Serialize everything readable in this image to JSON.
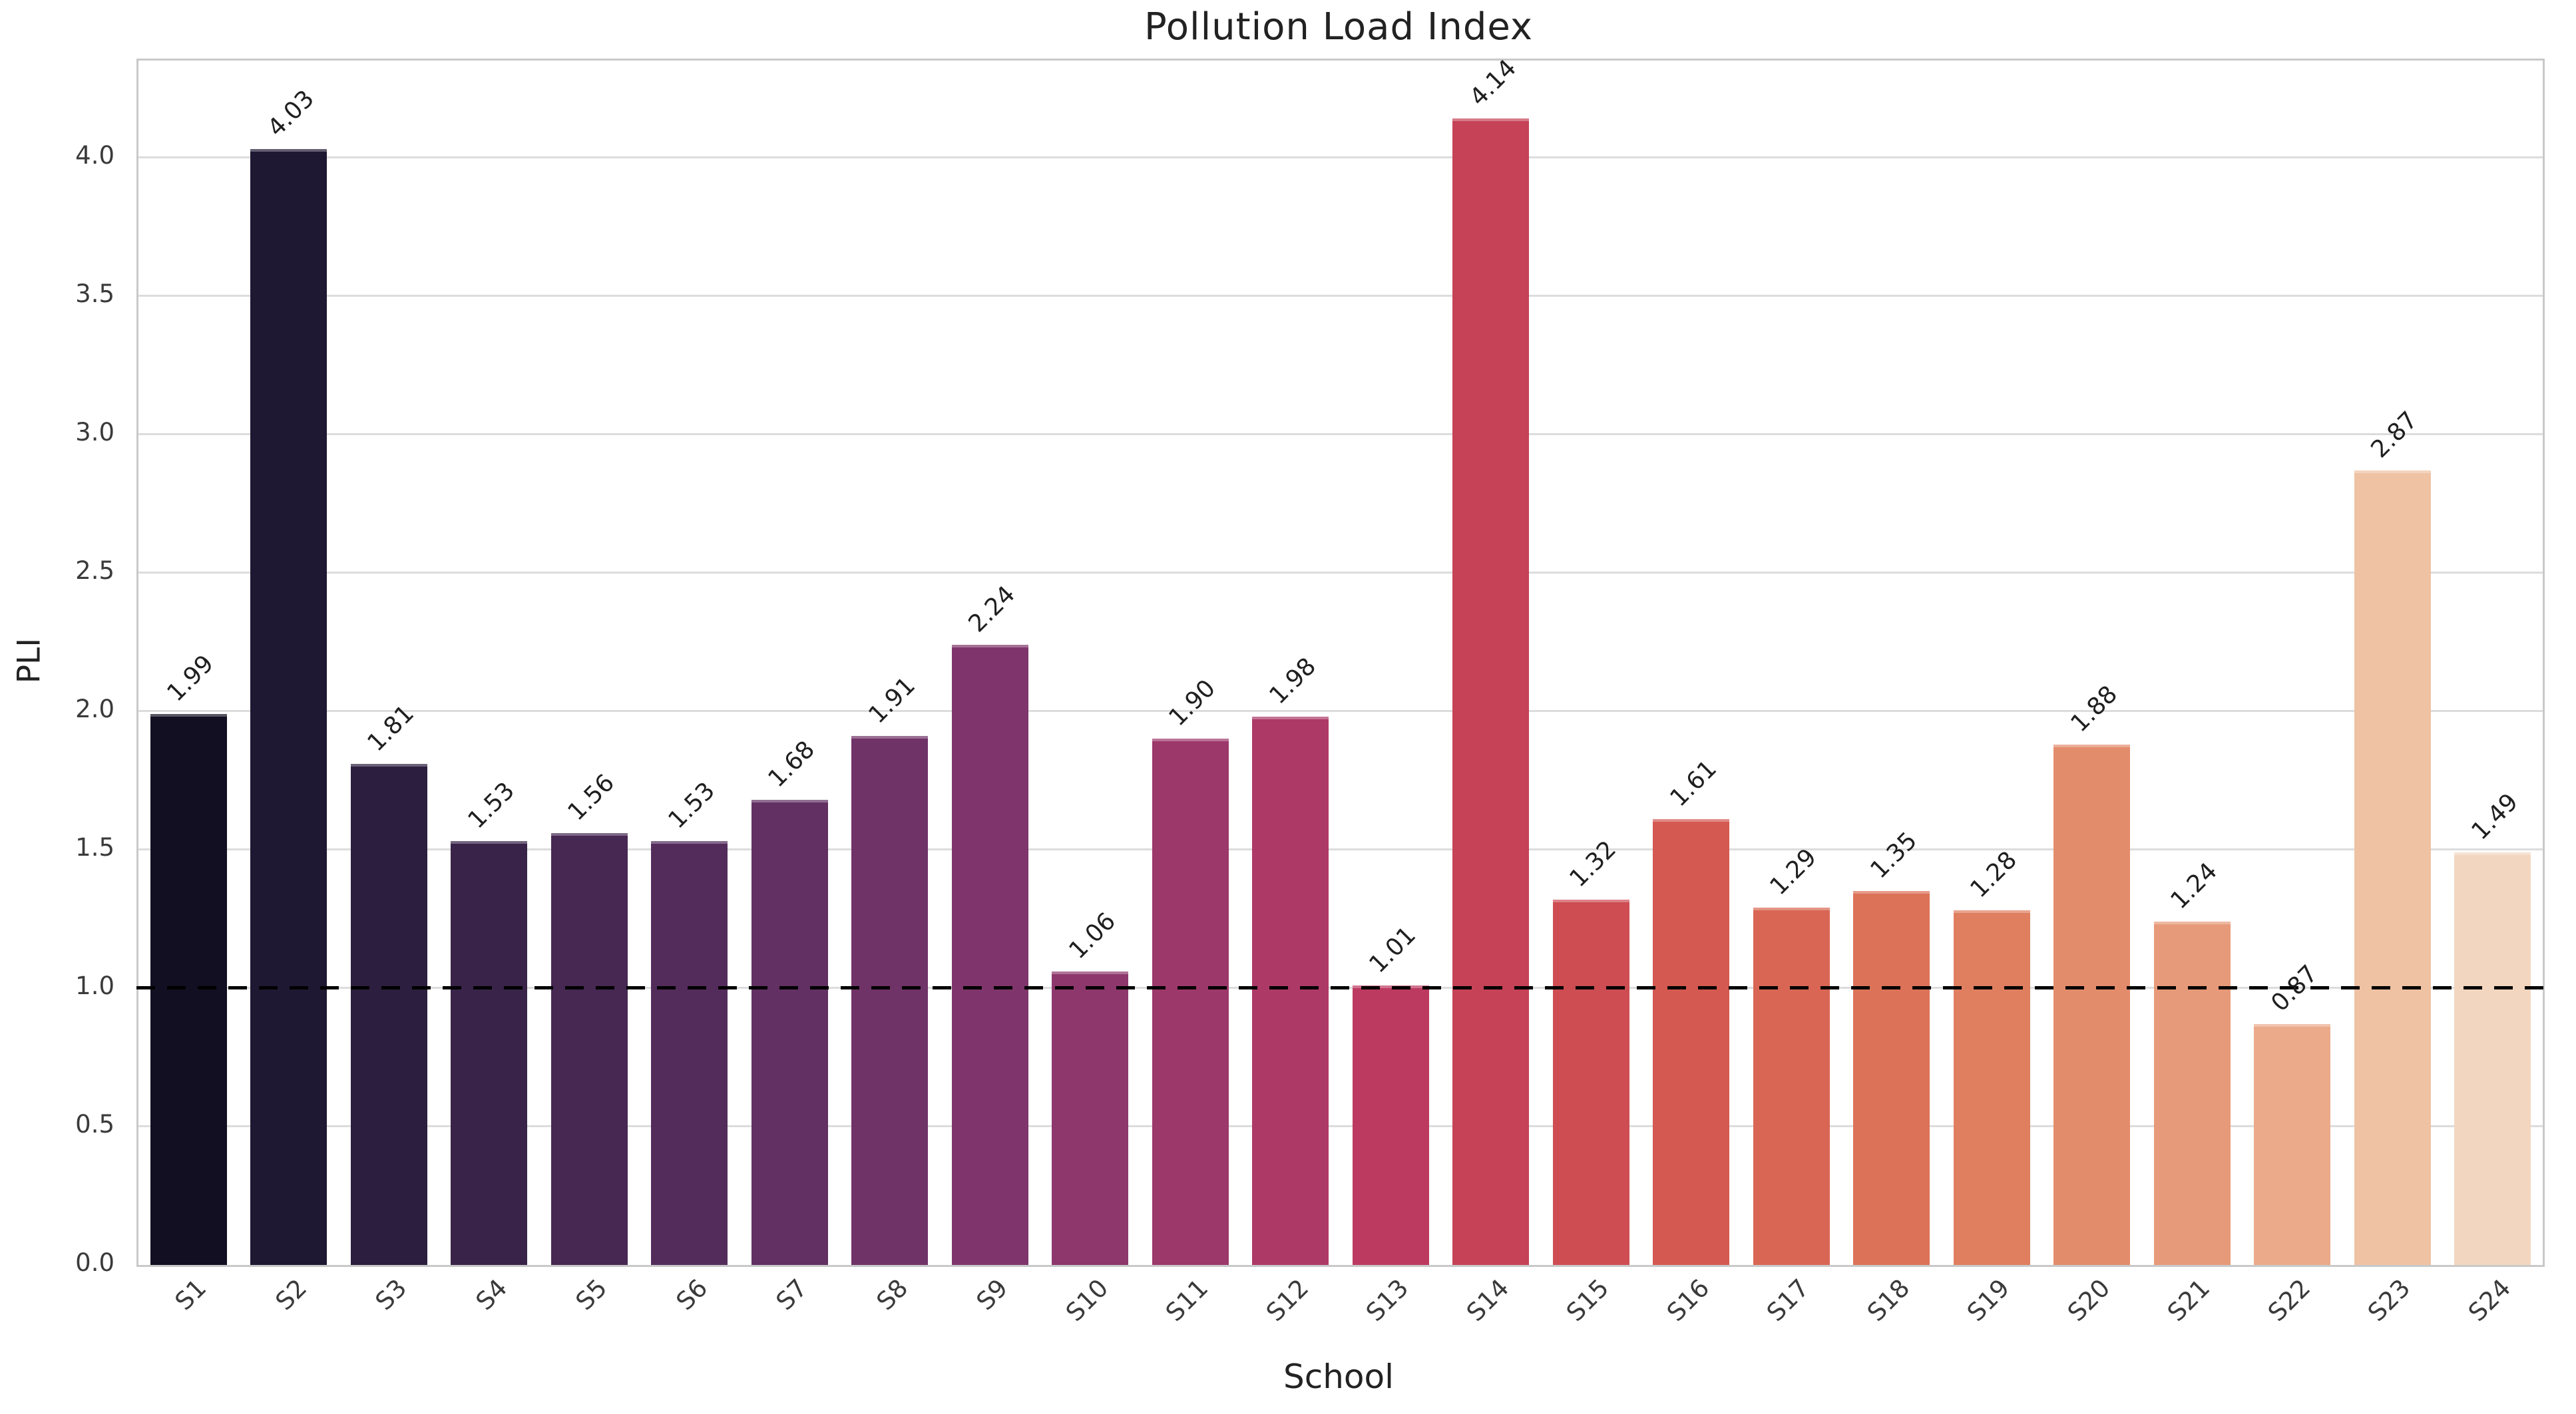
{
  "figure": {
    "title": "Pollution Load Index"
  },
  "chart_data": {
    "type": "bar",
    "title": "Pollution Load Index",
    "xlabel": "School",
    "ylabel": "PLI",
    "categories": [
      "S1",
      "S2",
      "S3",
      "S4",
      "S5",
      "S6",
      "S7",
      "S8",
      "S9",
      "S10",
      "S11",
      "S12",
      "S13",
      "S14",
      "S15",
      "S16",
      "S17",
      "S18",
      "S19",
      "S20",
      "S21",
      "S22",
      "S23",
      "S24"
    ],
    "values": [
      1.99,
      4.03,
      1.81,
      1.53,
      1.56,
      1.53,
      1.68,
      1.91,
      2.24,
      1.06,
      1.9,
      1.98,
      1.01,
      4.14,
      1.32,
      1.61,
      1.29,
      1.35,
      1.28,
      1.88,
      1.24,
      0.87,
      2.87,
      1.49
    ],
    "bar_labels": [
      "1.99",
      "4.03",
      "1.81",
      "1.53",
      "1.56",
      "1.53",
      "1.68",
      "1.91",
      "2.24",
      "1.06",
      "1.90",
      "1.98",
      "1.01",
      "4.14",
      "1.32",
      "1.61",
      "1.29",
      "1.35",
      "1.28",
      "1.88",
      "1.24",
      "0.87",
      "2.87",
      "1.49"
    ],
    "bar_colors": [
      "#130f22",
      "#1f1833",
      "#2c1e3e",
      "#392349",
      "#462853",
      "#542c5c",
      "#623063",
      "#703367",
      "#7f356b",
      "#8e376c",
      "#9d386b",
      "#ad3967",
      "#bc3a60",
      "#c64257",
      "#cd4d53",
      "#d45951",
      "#d96654",
      "#dc7258",
      "#e07f60",
      "#e38c6c",
      "#e79a79",
      "#ebaa8a",
      "#efc2a3",
      "#f3d6bf"
    ],
    "palette_name": "rocket",
    "ylim": [
      0,
      4.35
    ],
    "yticks": [
      0.0,
      0.5,
      1.0,
      1.5,
      2.0,
      2.5,
      3.0,
      3.5,
      4.0
    ],
    "grid": "horizontal",
    "legend": "none",
    "reference_line": {
      "y": 1.0,
      "style": "dashed",
      "color": "#000000"
    }
  },
  "colors": {
    "background": "#ffffff",
    "gridline": "#dcdcdc",
    "spine": "#c9c9c9",
    "tick_text": "#3a3a3a",
    "label_text": "#1f1f1f",
    "title_text": "#222222",
    "reference_line": "#000000"
  }
}
